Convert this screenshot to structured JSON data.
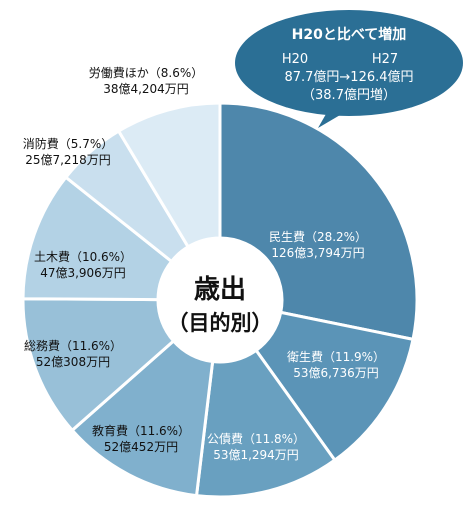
{
  "chart_data": {
    "type": "pie",
    "style": "donut",
    "title": "歳出",
    "subtitle": "（目的別）",
    "slices": [
      {
        "label": "民生費（28.2%）",
        "amount": "126億3,794万円",
        "percent": 28.2,
        "color": "#4e87ab",
        "text_color": "#ffffff"
      },
      {
        "label": "衛生費（11.9%）",
        "amount": "53億6,736万円",
        "percent": 11.9,
        "color": "#5b94b7",
        "text_color": "#ffffff"
      },
      {
        "label": "公債費（11.8%）",
        "amount": "53億1,294万円",
        "percent": 11.8,
        "color": "#69a0c0",
        "text_color": "#ffffff"
      },
      {
        "label": "教育費（11.6%）",
        "amount": "52億452万円",
        "percent": 11.6,
        "color": "#80b0cd",
        "text_color": "#111111"
      },
      {
        "label": "総務費（11.6%）",
        "amount": "52億308万円",
        "percent": 11.6,
        "color": "#98c0d8",
        "text_color": "#111111"
      },
      {
        "label": "土木費（10.6%）",
        "amount": "47億3,906万円",
        "percent": 10.6,
        "color": "#b3d2e5",
        "text_color": "#111111"
      },
      {
        "label": "消防費（5.7%）",
        "amount": "25億7,218万円",
        "percent": 5.7,
        "color": "#c9dfee",
        "text_color": "#111111"
      },
      {
        "label": "労働費ほか（8.6%）",
        "amount": "38億4,204万円",
        "percent": 8.6,
        "color": "#dcebf5",
        "text_color": "#111111"
      }
    ]
  },
  "callout": {
    "title": "H20と比べて増加",
    "col1_header": "H20",
    "col2_header": "H27",
    "change_line": "87.7億円→126.4億円",
    "increase_line": "（38.7億円増）",
    "color": "#2b6f95"
  }
}
